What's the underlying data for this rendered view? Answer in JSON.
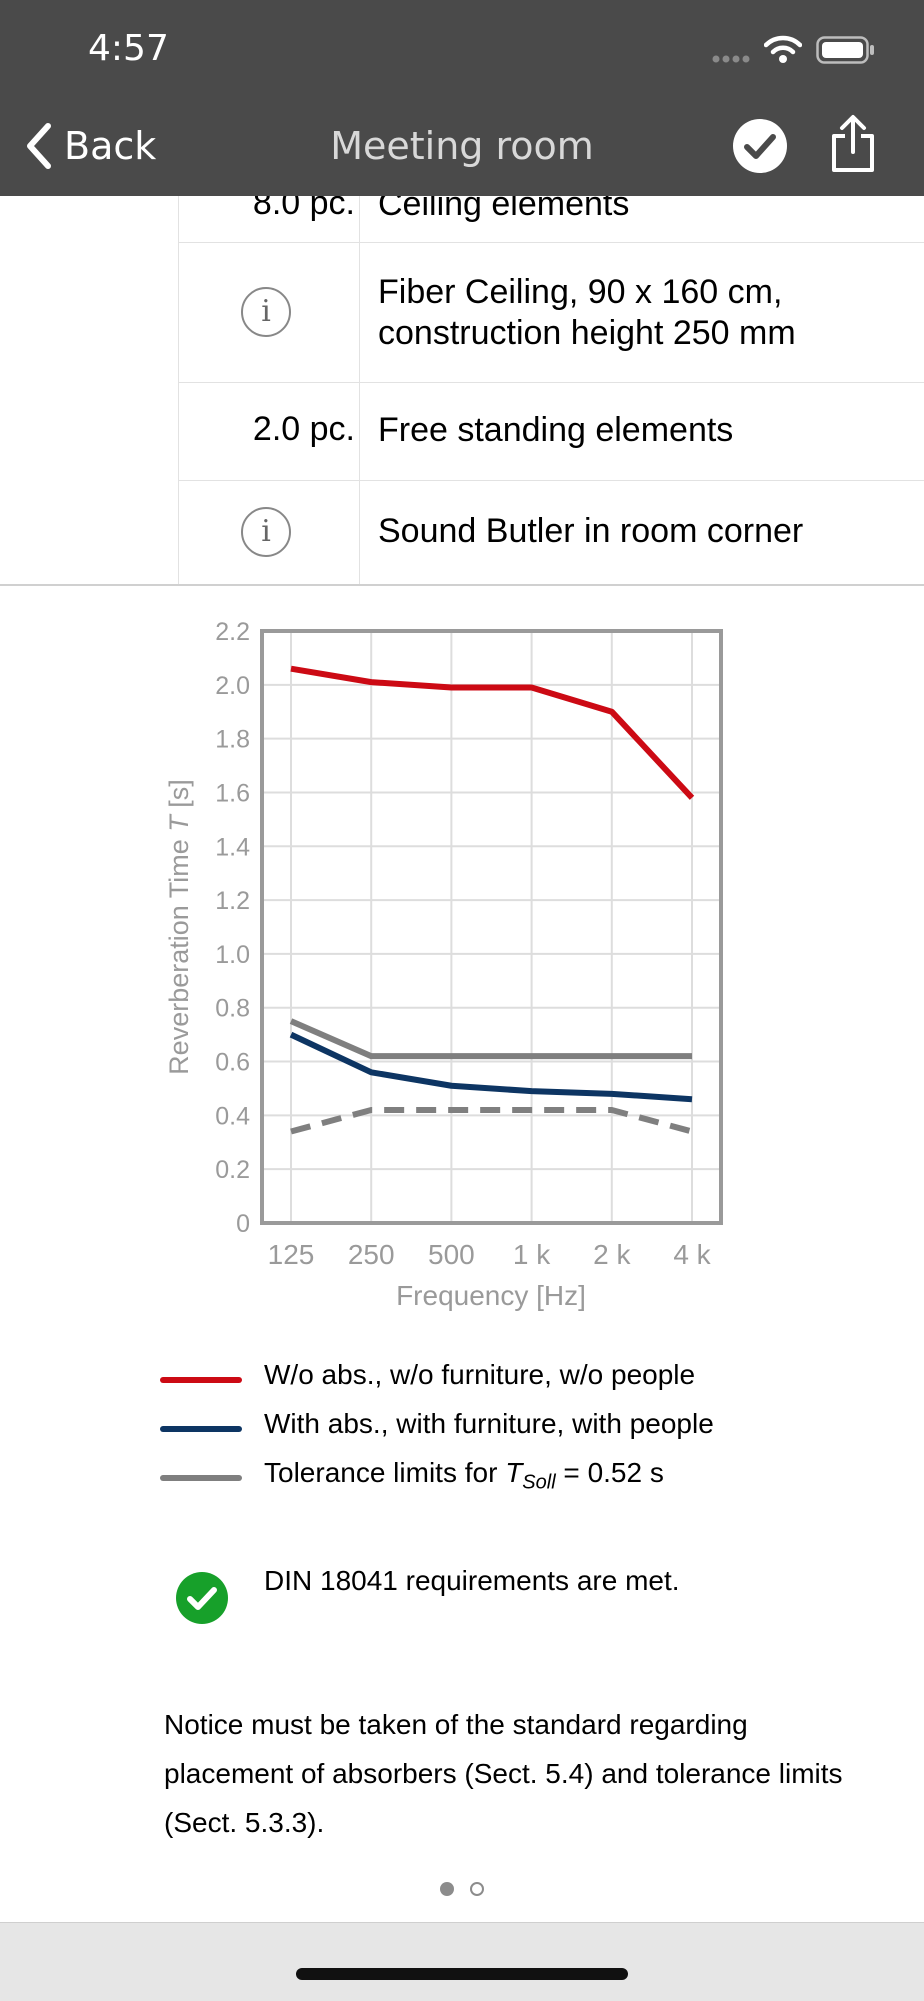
{
  "status": {
    "time": "4:57"
  },
  "nav": {
    "back_label": "Back",
    "title": "Meeting room"
  },
  "table": {
    "rows": [
      {
        "qty": "8.0 pc.",
        "desc": "Ceiling elements"
      },
      {
        "desc_line1": "Fiber Ceiling, 90 x 160 cm,",
        "desc_line2": "construction height 250 mm"
      },
      {
        "qty": "2.0 pc.",
        "desc": "Free standing elements"
      },
      {
        "desc": "Sound Butler in room corner"
      }
    ]
  },
  "chart_data": {
    "type": "line",
    "xlabel": "Frequency [Hz]",
    "ylabel_pre": "Reverberation Time ",
    "ylabel_var": "T",
    "ylabel_post": " [s]",
    "categories": [
      "125",
      "250",
      "500",
      "1 k",
      "2 k",
      "4 k"
    ],
    "ylim": [
      0,
      2.2
    ],
    "yticks": [
      "0",
      "0.2",
      "0.4",
      "0.6",
      "0.8",
      "1.0",
      "1.2",
      "1.4",
      "1.6",
      "1.8",
      "2.0",
      "2.2"
    ],
    "grid": true,
    "series": [
      {
        "name": "W/o abs., w/o furniture, w/o people",
        "values": [
          2.06,
          2.01,
          1.99,
          1.99,
          1.9,
          1.58
        ],
        "color": "#cc0a14"
      },
      {
        "name": "With abs., with furniture, with people",
        "values": [
          0.7,
          0.56,
          0.51,
          0.49,
          0.48,
          0.46
        ],
        "color": "#0d3563"
      },
      {
        "values": [
          0.75,
          0.62,
          0.62,
          0.62,
          0.62,
          0.62
        ],
        "color": "#7f7f7f"
      },
      {
        "values": [
          0.34,
          0.42,
          0.42,
          0.42,
          0.42,
          0.34
        ],
        "color": "#7f7f7f"
      }
    ],
    "legend_tolerance": {
      "prefix": "Tolerance limits for ",
      "var": "T",
      "sub": "Soll",
      "suffix": " = 0.52 s"
    }
  },
  "result": {
    "requirements": "DIN 18041 requirements are met.",
    "notice": "Notice must be taken of the standard regarding placement of absorbers (Sect. 5.4) and tolerance limits (Sect. 5.3.3)."
  },
  "colors": {
    "bar": "#4a4a4a",
    "red": "#cc0a14",
    "blue": "#0d3563",
    "gray": "#7f7f7f",
    "check": "#17a02a"
  }
}
